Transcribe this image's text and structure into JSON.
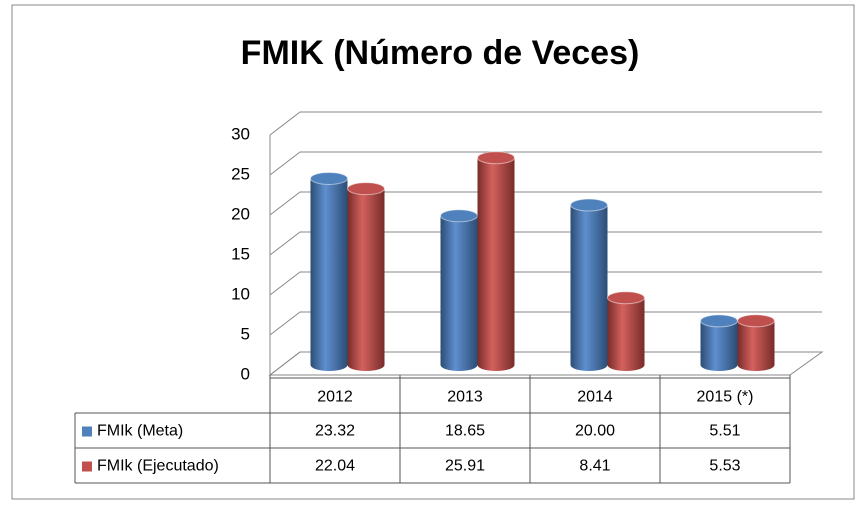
{
  "chart_data": {
    "type": "bar3d",
    "title": "FMIK (Número de Veces)",
    "categories": [
      "2012",
      "2013",
      "2014",
      "2015 (*)"
    ],
    "series": [
      {
        "name": "FMIk (Meta)",
        "color": "#4f81bd",
        "values": [
          23.32,
          18.65,
          20.0,
          5.51
        ],
        "value_labels": [
          "23.32",
          "18.65",
          "20.00",
          "5.51"
        ]
      },
      {
        "name": "FMIk (Ejecutado)",
        "color": "#c0504d",
        "values": [
          22.04,
          25.91,
          8.41,
          5.53
        ],
        "value_labels": [
          "22.04",
          "25.91",
          "8.41",
          "5.53"
        ]
      }
    ],
    "ylim": [
      0,
      30
    ],
    "yticks": [
      0,
      5,
      10,
      15,
      20,
      25,
      30
    ],
    "grid": true,
    "data_table": true
  }
}
